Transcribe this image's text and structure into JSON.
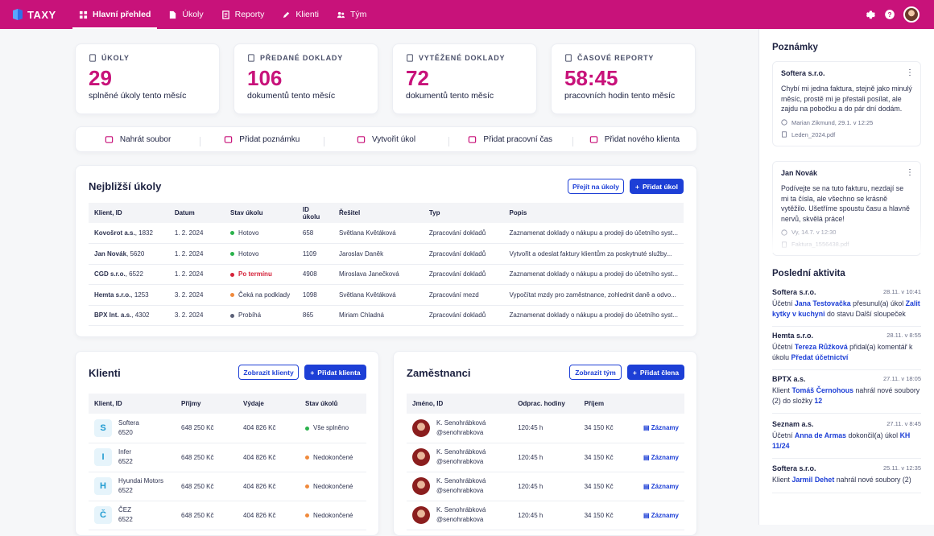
{
  "brand": {
    "name": "TAXY"
  },
  "nav": [
    {
      "label": "Hlavní přehled",
      "icon": "dashboard-icon",
      "active": true
    },
    {
      "label": "Úkoly",
      "icon": "document-icon"
    },
    {
      "label": "Reporty",
      "icon": "report-icon"
    },
    {
      "label": "Klienti",
      "icon": "pen-icon"
    },
    {
      "label": "Tým",
      "icon": "team-icon"
    }
  ],
  "stats": [
    {
      "label": "ÚKOLY",
      "value": "29",
      "sub": "splněné úkoly tento měsíc"
    },
    {
      "label": "PŘEDANÉ DOKLADY",
      "value": "106",
      "sub": "dokumentů tento měsíc"
    },
    {
      "label": "VYTĚŽENÉ DOKLADY",
      "value": "72",
      "sub": "dokumentů tento měsíc"
    },
    {
      "label": "ČASOVÉ REPORTY",
      "value": "58:45",
      "sub": "pracovních hodin tento měsíc"
    }
  ],
  "actions": [
    "Nahrát soubor",
    "Přidat poznámku",
    "Vytvořit úkol",
    "Přidat pracovní čas",
    "Přidat nového klienta"
  ],
  "tasks": {
    "title": "Nejbližší úkoly",
    "btn_go": "Přejít na úkoly",
    "btn_add": "Přidat úkol",
    "columns": [
      "Klient, ID",
      "Datum",
      "Stav úkolu",
      "ID úkolu",
      "Řešitel",
      "Typ",
      "Popis"
    ],
    "rows": [
      {
        "client": "Kovošrot a.s.",
        "id": "1832",
        "date": "1. 2. 2024",
        "status": "Hotovo",
        "status_color": "#2bb24c",
        "task_id": "658",
        "solver": "Světlana Květáková",
        "type": "Zpracování dokladů",
        "desc": "Zaznamenat doklady o nákupu a prodeji do účetního syst..."
      },
      {
        "client": "Jan Novák",
        "id": "5620",
        "date": "1. 2. 2024",
        "status": "Hotovo",
        "status_color": "#2bb24c",
        "task_id": "1109",
        "solver": "Jaroslav Daněk",
        "type": "Zpracování dokladů",
        "desc": "Vytvořit a odeslat faktury klientům za poskytnuté služby..."
      },
      {
        "client": "CGD s.r.o.",
        "id": "6522",
        "date": "1. 2. 2024",
        "status": "Po termínu",
        "status_color": "#d5223a",
        "task_id": "4908",
        "solver": "Miroslava Janečková",
        "type": "Zpracování dokladů",
        "desc": "Zaznamenat doklady o nákupu a prodeji do účetního syst..."
      },
      {
        "client": "Hemta s.r.o.",
        "id": "1253",
        "date": "3. 2. 2024",
        "status": "Čeká na podklady",
        "status_color": "#f08a3c",
        "task_id": "1098",
        "solver": "Světlana Květáková",
        "type": "Zpracování mezd",
        "desc": "Vypočítat mzdy pro zaměstnance, zohlednit daně a odvo..."
      },
      {
        "client": "BPX Int. a.s.",
        "id": "4302",
        "date": "3. 2. 2024",
        "status": "Probíhá",
        "status_color": "#5b6078",
        "task_id": "865",
        "solver": "Miriam Chladná",
        "type": "Zpracování dokladů",
        "desc": "Zaznamenat doklady o nákupu a prodeji do účetního syst..."
      }
    ]
  },
  "clients": {
    "title": "Klienti",
    "btn_show": "Zobrazit klienty",
    "btn_add": "Přidat klienta",
    "columns": [
      "Klient, ID",
      "Příjmy",
      "Výdaje",
      "Stav úkolů"
    ],
    "rows": [
      {
        "initial": "S",
        "name": "Softera",
        "id": "6520",
        "income": "648 250 Kč",
        "expense": "404 826 Kč",
        "status": "Vše splněno",
        "status_color": "#2bb24c"
      },
      {
        "initial": "I",
        "name": "Infer",
        "id": "6522",
        "income": "648 250 Kč",
        "expense": "404 826 Kč",
        "status": "Nedokončené",
        "status_color": "#f08a3c"
      },
      {
        "initial": "H",
        "name": "Hyundai Motors",
        "id": "6522",
        "income": "648 250 Kč",
        "expense": "404 826 Kč",
        "status": "Nedokončené",
        "status_color": "#f08a3c"
      },
      {
        "initial": "Č",
        "name": "ČEZ",
        "id": "6522",
        "income": "648 250 Kč",
        "expense": "404 826 Kč",
        "status": "Nedokončené",
        "status_color": "#f08a3c"
      }
    ]
  },
  "employees": {
    "title": "Zaměstnanci",
    "btn_show": "Zobrazit tým",
    "btn_add": "Přidat člena",
    "columns": [
      "Jméno, ID",
      "Odprac. hodiny",
      "Příjem",
      ""
    ],
    "rows": [
      {
        "name": "K. Senohrábková",
        "handle": "@senohrabkova",
        "hours": "120:45 h",
        "income": "34 150 Kč",
        "link": "Záznamy"
      },
      {
        "name": "K. Senohrábková",
        "handle": "@senohrabkova",
        "hours": "120:45 h",
        "income": "34 150 Kč",
        "link": "Záznamy"
      },
      {
        "name": "K. Senohrábková",
        "handle": "@senohrabkova",
        "hours": "120:45 h",
        "income": "34 150 Kč",
        "link": "Záznamy"
      },
      {
        "name": "K. Senohrábková",
        "handle": "@senohrabkova",
        "hours": "120:45 h",
        "income": "34 150 Kč",
        "link": "Záznamy"
      }
    ]
  },
  "notes": {
    "title": "Poznámky",
    "items": [
      {
        "author": "Softera s.r.o.",
        "text": "Chybí mi jedna faktura, stejně jako minulý měsíc, prostě mi je přestali posílat, ale zajdu na pobočku a do pár dní dodám.",
        "meta": "Marian Zikmund, 29.1. v 12:25",
        "file": "Leden_2024.pdf"
      },
      {
        "author": "Jan Novák",
        "text": "Podívejte se na tuto fakturu, nezdají se mi ta čísla, ale všechno se krásně vytěžilo. Ušetříme spoustu času a hlavně nervů, skvělá práce!",
        "meta": "Vy, 14.7. v 12:30",
        "file": "Faktura_1556438.pdf"
      }
    ]
  },
  "activity": {
    "title": "Poslední aktivita",
    "items": [
      {
        "company": "Softera s.r.o.",
        "time": "28.11. v 10:41",
        "parts": [
          [
            "Účetní ",
            0
          ],
          [
            "Jana Testovačka",
            1
          ],
          [
            " přesunul(a) úkol ",
            0
          ],
          [
            "Zalit kytky v kuchyni",
            1
          ],
          [
            " do stavu Další sloupeček",
            0
          ]
        ]
      },
      {
        "company": "Hemta s.r.o.",
        "time": "28.11. v 8:55",
        "parts": [
          [
            "Účetní ",
            0
          ],
          [
            "Tereza Růžková",
            1
          ],
          [
            " přidal(a) komentář k úkolu ",
            0
          ],
          [
            "Předat účetnictví",
            1
          ]
        ]
      },
      {
        "company": "BPTX a.s.",
        "time": "27.11. v 18:05",
        "parts": [
          [
            "Klient ",
            0
          ],
          [
            "Tomáš Černohous",
            1
          ],
          [
            " nahrál nové soubory (2) do složky ",
            0
          ],
          [
            "12",
            1
          ]
        ]
      },
      {
        "company": "Seznam a.s.",
        "time": "27.11. v 8:45",
        "parts": [
          [
            "Účetní ",
            0
          ],
          [
            "Anna de Armas",
            1
          ],
          [
            " dokončil(a) úkol ",
            0
          ],
          [
            "KH 11/24",
            1
          ]
        ]
      },
      {
        "company": "Softera s.r.o.",
        "time": "25.11. v 12:35",
        "parts": [
          [
            "Klient ",
            0
          ],
          [
            "Jarmil Dehet",
            1
          ],
          [
            " nahrál nové soubory (2)",
            0
          ]
        ]
      }
    ]
  }
}
